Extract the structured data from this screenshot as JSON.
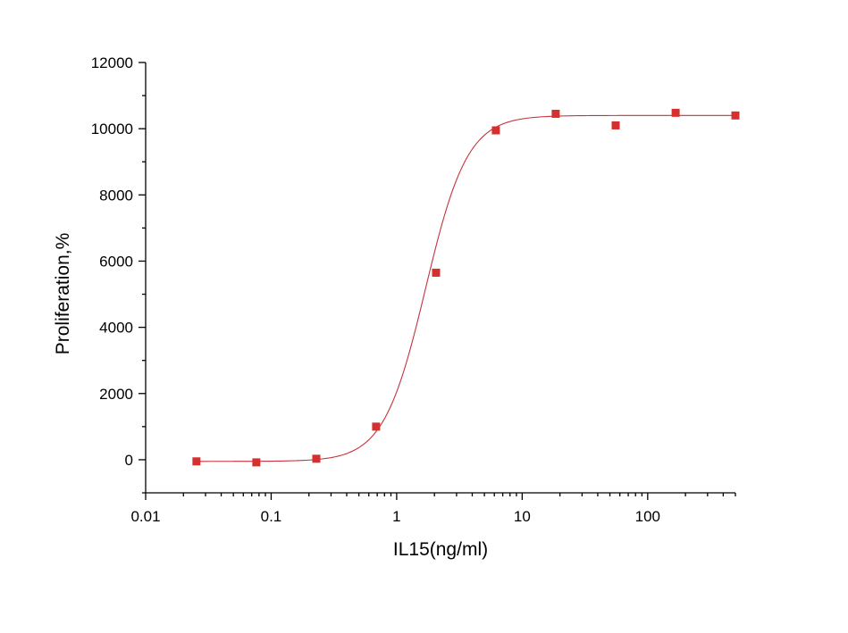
{
  "chart_data": {
    "type": "scatter",
    "title": "",
    "xlabel": "IL15(ng/ml)",
    "ylabel": "Proliferation,%",
    "xscale": "log",
    "xlim": [
      0.01,
      500
    ],
    "ylim": [
      -1000,
      12000
    ],
    "x_ticks": [
      0.01,
      0.1,
      1,
      10,
      100
    ],
    "x_tick_labels": [
      "0.01",
      "0.1",
      "1",
      "10",
      "100"
    ],
    "y_ticks": [
      0,
      2000,
      4000,
      6000,
      8000,
      10000,
      12000
    ],
    "y_tick_labels": [
      "0",
      "2000",
      "4000",
      "6000",
      "8000",
      "10000",
      "12000"
    ],
    "grid": false,
    "legend": "none",
    "marker_color": "#d62f2f",
    "curve_color": "#c8323c",
    "series": [
      {
        "kind": "points",
        "x": [
          0.0254,
          0.0762,
          0.229,
          0.686,
          2.06,
          6.17,
          18.5,
          55.6,
          167,
          500
        ],
        "y": [
          -50,
          -80,
          30,
          1000,
          5650,
          9950,
          10450,
          10100,
          10480,
          10400
        ]
      },
      {
        "kind": "fit-curve",
        "model": "4PL",
        "bottom": -50,
        "top": 10400,
        "ec50": 1.7,
        "hill": 2.6
      }
    ]
  }
}
